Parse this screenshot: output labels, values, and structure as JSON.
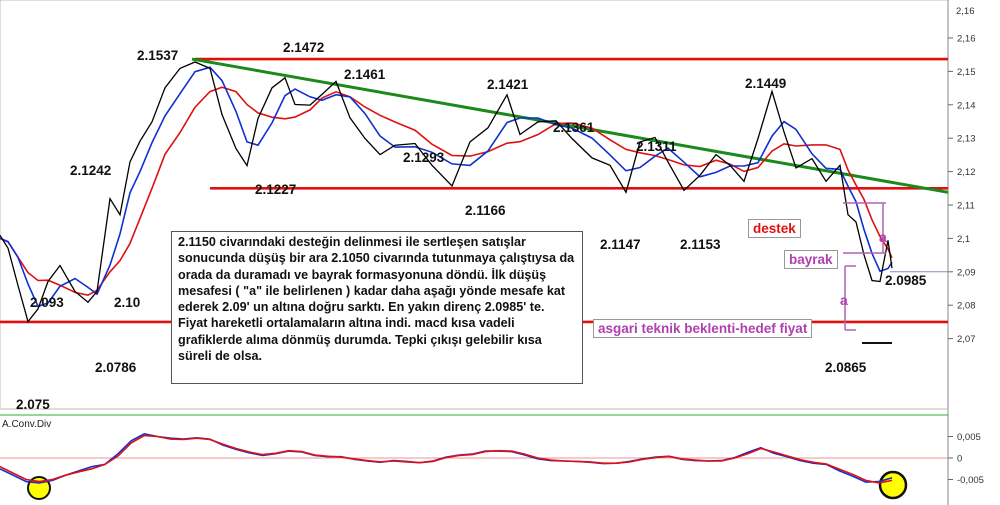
{
  "chart_data": [
    {
      "type": "line",
      "title": "",
      "price_axis": {
        "ticks": [
          "2,07",
          "2,08",
          "2,09",
          "2,1",
          "2,11",
          "2,12",
          "2,13",
          "2,14",
          "2,15",
          "2,16"
        ]
      },
      "top_tick": "2,16",
      "ylim": [
        2.07,
        2.16
      ],
      "price_labels": [
        {
          "text": "2.1537",
          "value": 2.1537
        },
        {
          "text": "2.1472",
          "value": 2.1472
        },
        {
          "text": "2.1461",
          "value": 2.1461
        },
        {
          "text": "2.1421",
          "value": 2.1421
        },
        {
          "text": "2.1449",
          "value": 2.1449
        },
        {
          "text": "2.1361",
          "value": 2.1361
        },
        {
          "text": "2.1311",
          "value": 2.1311
        },
        {
          "text": "2.1293",
          "value": 2.1293
        },
        {
          "text": "2.1242",
          "value": 2.1242
        },
        {
          "text": "2.1227",
          "value": 2.1227
        },
        {
          "text": "2.1166",
          "value": 2.1166
        },
        {
          "text": "2.1147",
          "value": 2.1147
        },
        {
          "text": "2.1153",
          "value": 2.1153
        },
        {
          "text": "2.0985",
          "value": 2.0985
        },
        {
          "text": "2.093",
          "value": 2.093
        },
        {
          "text": "2.10",
          "value": 2.1
        },
        {
          "text": "2.0786",
          "value": 2.0786
        },
        {
          "text": "2.0865",
          "value": 2.0865
        },
        {
          "text": "2.075",
          "value": 2.075
        }
      ],
      "horizontal_lines": [
        {
          "name": "resistance",
          "value": 2.1537,
          "color": "#e01010"
        },
        {
          "name": "support",
          "value": 2.115,
          "color": "#e01010"
        },
        {
          "name": "low",
          "value": 2.075,
          "color": "#e01010"
        },
        {
          "name": "target",
          "value": 2.09,
          "color": "#8888cc"
        }
      ],
      "trendline": {
        "from": 2.1537,
        "to": 2.115,
        "color": "#1a8a1a"
      },
      "price_series_color": "#000000",
      "fast_ma_color": "#1030d0",
      "slow_ma_color": "#e01010",
      "annotations": {
        "destek": "destek",
        "bayrak": "bayrak",
        "hedef": "asgari teknik beklenti-hedef fiyat",
        "a_mark": "a",
        "note": "2.1150 civarındaki desteğin delinmesi ile sertleşen satışlar sonucunda düşüş bir ara 2.1050 civarında tutunmaya çalıştıysa da orada da duramadı ve bayrak formasyonuna döndü. İlk düşüş mesafesi ( \"a\" ile belirlenen ) kadar daha aşağı yönde mesafe kat ederek 2.09' un altına doğru sarktı. En yakın direnç 2.0985' te. Fiyat hareketli ortalamaların altına indi. macd kısa vadeli grafiklerde alıma dönmüş durumda. Tepki çıkışı gelebilir kısa süreli de olsa."
      }
    },
    {
      "type": "line",
      "name": "A.Conv.Div",
      "ticks": [
        "0,005",
        "0",
        "-0,005"
      ],
      "ylim": [
        -0.0075,
        0.0075
      ],
      "series": [
        {
          "color": "#1030d0",
          "values": [
            -0.0025,
            -0.004,
            -0.0055,
            -0.0058,
            -0.0052,
            -0.004,
            -0.003,
            -0.002,
            -0.0015,
            0.001,
            0.004,
            0.0056,
            0.005,
            0.0046,
            0.0044,
            0.0047,
            0.0044,
            0.003,
            0.002,
            0.0012,
            0.0006,
            0.001,
            0.0016,
            0.0014,
            0.0006,
            0.0003,
            0.0003,
            -0.0003,
            -0.0007,
            -0.001,
            -0.0006,
            -0.0008,
            -0.0011,
            -0.0007,
            0.0002,
            0.0007,
            0.0009,
            0.0016,
            0.0016,
            0.0015,
            0.0007,
            -0.0002,
            -0.0006,
            -0.0007,
            -0.0008,
            -0.001,
            -0.0013,
            -0.0012,
            -0.0008,
            -0.0002,
            0.0002,
            0.0004,
            -0.0003,
            -0.0006,
            -0.0007,
            -0.0006,
            0.0001,
            0.0013,
            0.0024,
            0.0011,
            0.0003,
            -0.0006,
            -0.0012,
            -0.0015,
            -0.003,
            -0.0042,
            -0.0056,
            -0.0055,
            -0.0046
          ]
        },
        {
          "color": "#e01010",
          "values": [
            -0.002,
            -0.0035,
            -0.005,
            -0.0055,
            -0.005,
            -0.004,
            -0.0032,
            -0.0025,
            -0.0015,
            0.0005,
            0.0035,
            0.0052,
            0.005,
            0.0044,
            0.0043,
            0.0046,
            0.0043,
            0.0032,
            0.0022,
            0.0014,
            0.0008,
            0.0011,
            0.0017,
            0.0015,
            0.0007,
            0.0004,
            0.0002,
            -0.0002,
            -0.0006,
            -0.0009,
            -0.0007,
            -0.0009,
            -0.0011,
            -0.0008,
            0.0001,
            0.0006,
            0.0008,
            0.0015,
            0.0017,
            0.0016,
            0.0009,
            0.0,
            -0.0005,
            -0.0007,
            -0.0008,
            -0.0009,
            -0.0012,
            -0.0012,
            -0.0009,
            -0.0003,
            0.0001,
            0.0004,
            -0.0002,
            -0.0005,
            -0.0007,
            -0.0007,
            0.0,
            0.001,
            0.0022,
            0.0014,
            0.0005,
            -0.0004,
            -0.001,
            -0.0014,
            -0.0026,
            -0.0038,
            -0.0052,
            -0.0058,
            -0.0052
          ]
        }
      ],
      "highlight_color": "#ffff00"
    }
  ]
}
